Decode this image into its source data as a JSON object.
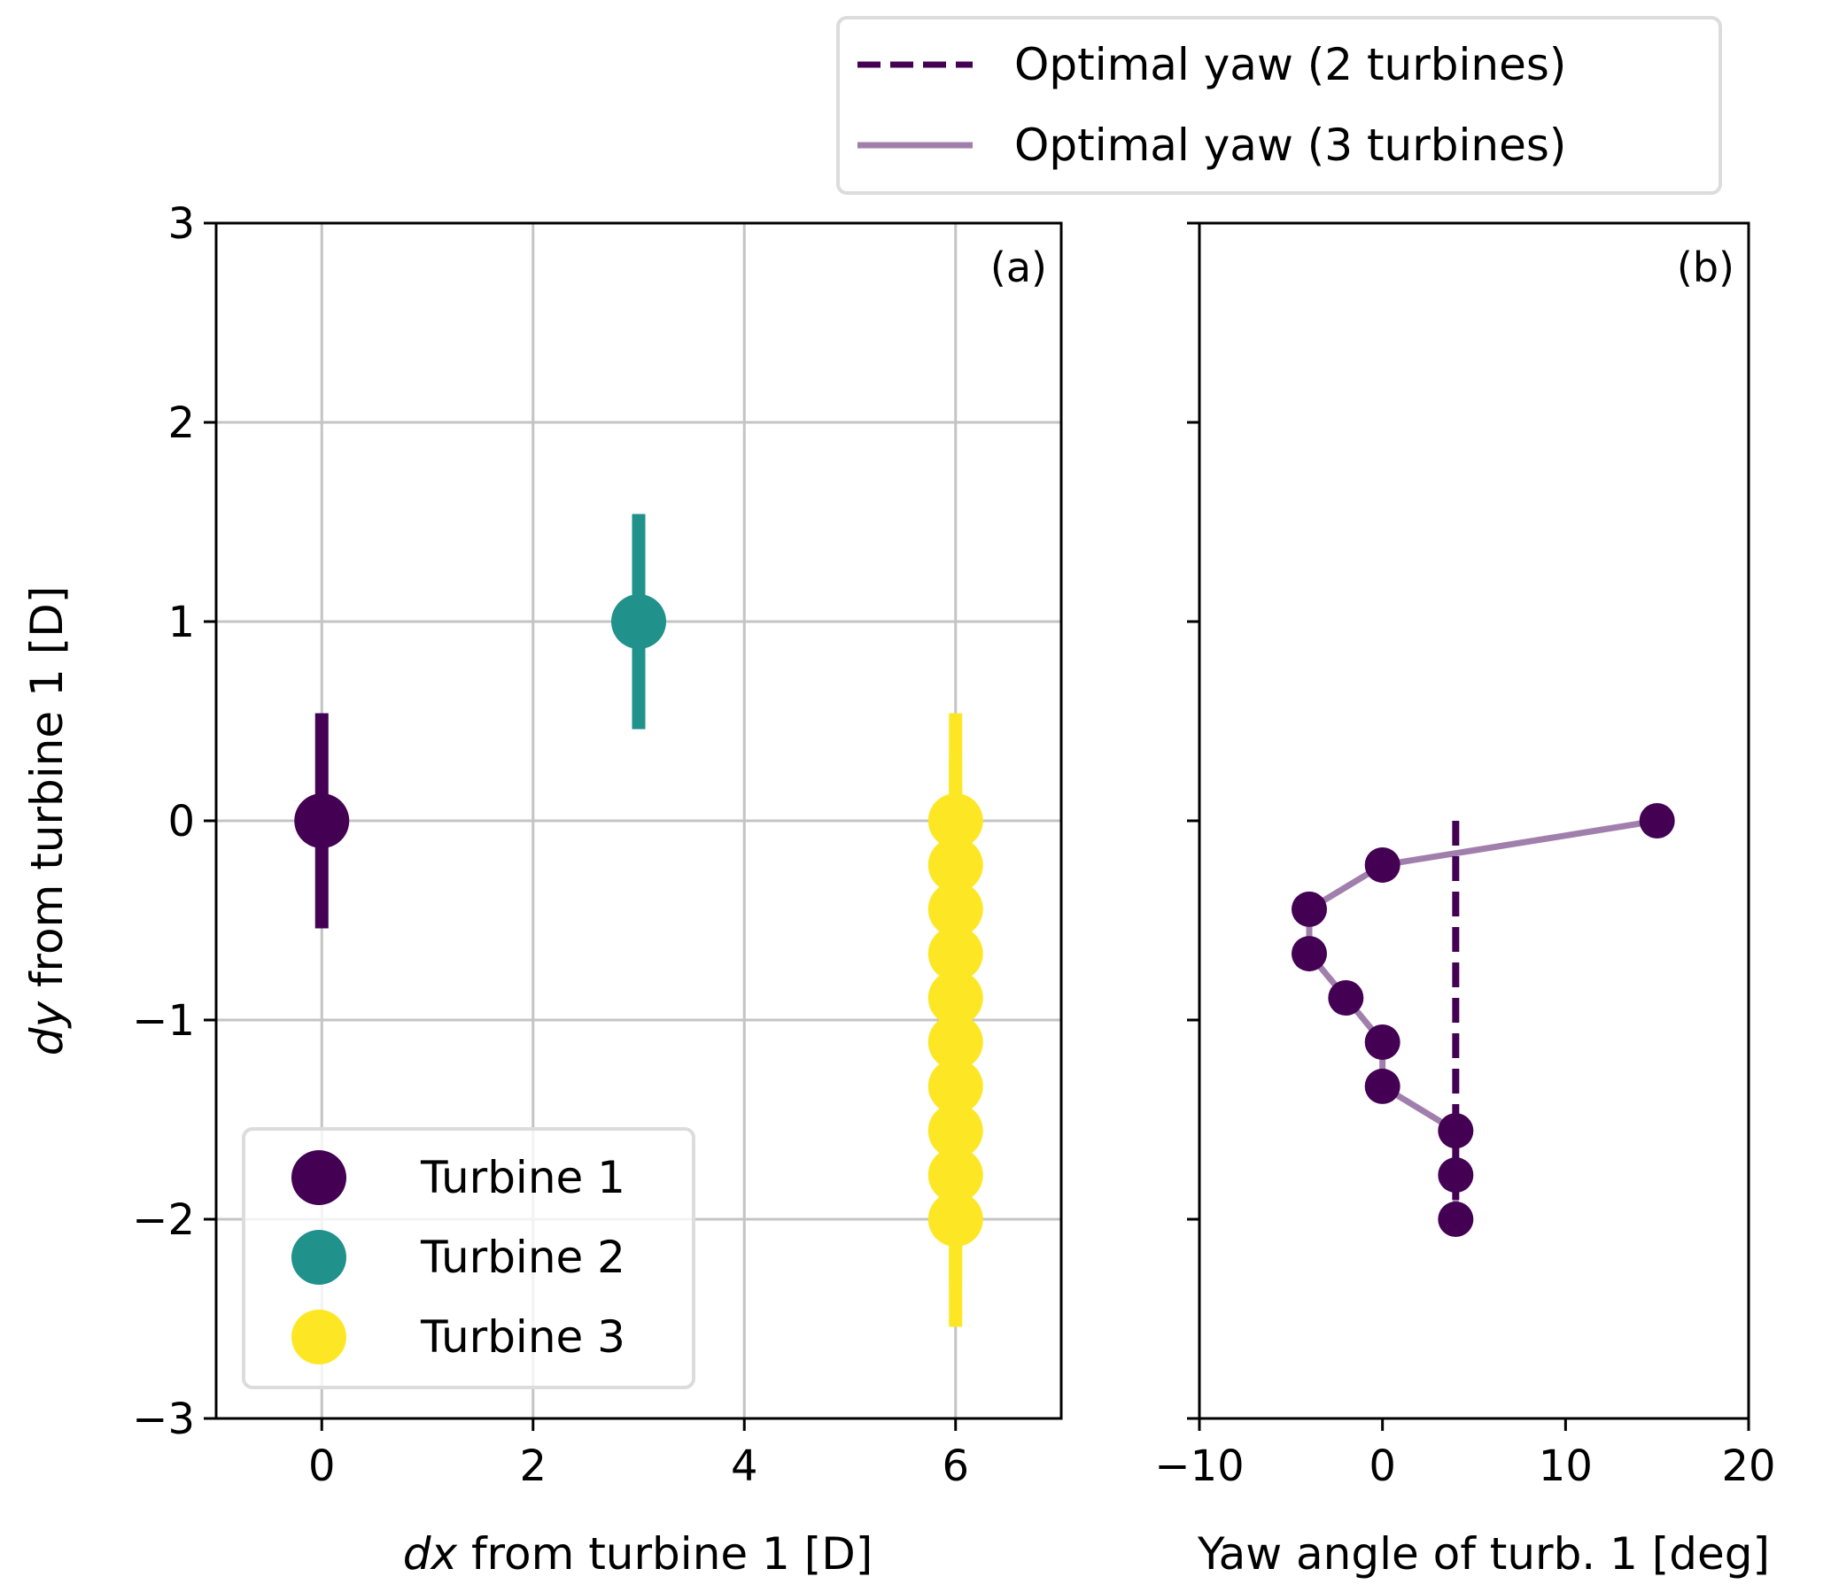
{
  "chart_data": [
    {
      "type": "scatter",
      "panel_label": "(a)",
      "xlabel_italic": "dx",
      "xlabel_rest": " from turbine 1 [D]",
      "ylabel_italic": "dy",
      "ylabel_rest": " from turbine 1 [D]",
      "xlim": [
        -1,
        7
      ],
      "ylim": [
        -3,
        3
      ],
      "xticks": [
        0,
        2,
        4,
        6
      ],
      "xtick_labels": [
        "0",
        "2",
        "4",
        "6"
      ],
      "yticks": [
        -3,
        -2,
        -1,
        0,
        1,
        2,
        3
      ],
      "ytick_labels": [
        "−3",
        "−2",
        "−1",
        "0",
        "1",
        "2",
        "3"
      ],
      "grid": true,
      "legend_position": "lower-left",
      "series": [
        {
          "name": "Turbine 1",
          "color": "#440154",
          "x": [
            0
          ],
          "y": [
            0
          ],
          "rotor_span": 0.54
        },
        {
          "name": "Turbine 2",
          "color": "#21918c",
          "x": [
            3
          ],
          "y": [
            1
          ],
          "rotor_span": 0.54
        },
        {
          "name": "Turbine 3",
          "color": "#fde725",
          "x": [
            6,
            6,
            6,
            6,
            6,
            6,
            6,
            6,
            6,
            6
          ],
          "y": [
            0,
            -0.222,
            -0.444,
            -0.667,
            -0.889,
            -1.111,
            -1.333,
            -1.556,
            -1.778,
            -2.0
          ],
          "rotor_span": 0.54
        }
      ]
    },
    {
      "type": "line",
      "panel_label": "(b)",
      "xlabel": "Yaw angle of turb. 1 [deg]",
      "xlim": [
        -10,
        20
      ],
      "ylim": [
        -3,
        3
      ],
      "xticks": [
        -10,
        0,
        10,
        20
      ],
      "xtick_labels": [
        "−10",
        "0",
        "10",
        "20"
      ],
      "yticks": [
        -3,
        -2,
        -1,
        0,
        1,
        2,
        3
      ],
      "ytick_labels": [],
      "grid": false,
      "legend_position": "top (outside, above panel b)",
      "series": [
        {
          "name": "Optimal yaw (2 turbines)",
          "style": "dashed",
          "color": "#440154",
          "x": [
            4,
            4
          ],
          "y": [
            0,
            -2.0
          ]
        },
        {
          "name": "Optimal yaw (3 turbines)",
          "style": "solid",
          "color": "#a17fac",
          "x": [
            15,
            0,
            -4,
            -4,
            -2,
            0,
            0,
            4,
            4,
            4
          ],
          "y": [
            0,
            -0.222,
            -0.444,
            -0.667,
            -0.889,
            -1.111,
            -1.333,
            -1.556,
            -1.778,
            -2.0
          ],
          "marker_color": "#440154"
        }
      ]
    }
  ]
}
